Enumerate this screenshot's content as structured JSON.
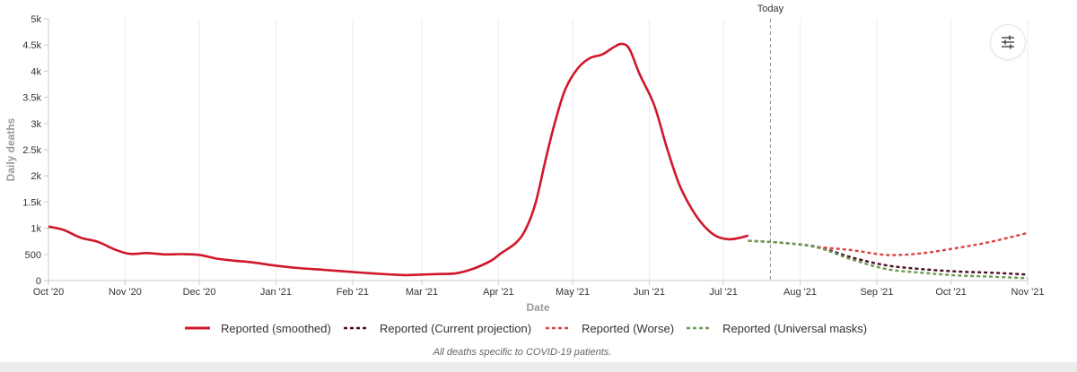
{
  "chart_data": {
    "type": "line",
    "title": "",
    "xlabel": "Date",
    "ylabel": "Daily deaths",
    "y_ticks": [
      {
        "value": 0,
        "label": "0"
      },
      {
        "value": 500,
        "label": "500"
      },
      {
        "value": 1000,
        "label": "1k"
      },
      {
        "value": 1500,
        "label": "1.5k"
      },
      {
        "value": 2000,
        "label": "2k"
      },
      {
        "value": 2500,
        "label": "2.5k"
      },
      {
        "value": 3000,
        "label": "3k"
      },
      {
        "value": 3500,
        "label": "3.5k"
      },
      {
        "value": 4000,
        "label": "4k"
      },
      {
        "value": 4500,
        "label": "4.5k"
      },
      {
        "value": 5000,
        "label": "5k"
      }
    ],
    "x_ticks": [
      {
        "value": "2020-10-01",
        "label": "Oct '20"
      },
      {
        "value": "2020-11-01",
        "label": "Nov '20"
      },
      {
        "value": "2020-12-01",
        "label": "Dec '20"
      },
      {
        "value": "2021-01-01",
        "label": "Jan '21"
      },
      {
        "value": "2021-02-01",
        "label": "Feb '21"
      },
      {
        "value": "2021-03-01",
        "label": "Mar '21"
      },
      {
        "value": "2021-04-01",
        "label": "Apr '21"
      },
      {
        "value": "2021-05-01",
        "label": "May '21"
      },
      {
        "value": "2021-06-01",
        "label": "Jun '21"
      },
      {
        "value": "2021-07-01",
        "label": "Jul '21"
      },
      {
        "value": "2021-08-01",
        "label": "Aug '21"
      },
      {
        "value": "2021-09-01",
        "label": "Sep '21"
      },
      {
        "value": "2021-10-01",
        "label": "Oct '21"
      },
      {
        "value": "2021-11-01",
        "label": "Nov '21"
      }
    ],
    "xlim": [
      "2020-10-01",
      "2021-11-01"
    ],
    "ylim": [
      0,
      5000
    ],
    "grid": "vertical",
    "today": {
      "date": "2021-07-20",
      "label": "Today"
    },
    "legend_position": "bottom",
    "series": [
      {
        "name": "Reported (smoothed)",
        "color": "#d0172b",
        "style": "solid",
        "points": [
          [
            "2020-10-01",
            1030
          ],
          [
            "2020-10-07",
            970
          ],
          [
            "2020-10-14",
            820
          ],
          [
            "2020-10-21",
            740
          ],
          [
            "2020-10-28",
            590
          ],
          [
            "2020-11-03",
            510
          ],
          [
            "2020-11-10",
            525
          ],
          [
            "2020-11-17",
            500
          ],
          [
            "2020-11-24",
            505
          ],
          [
            "2020-12-01",
            490
          ],
          [
            "2020-12-08",
            420
          ],
          [
            "2020-12-15",
            380
          ],
          [
            "2020-12-22",
            350
          ],
          [
            "2021-01-01",
            285
          ],
          [
            "2021-01-10",
            240
          ],
          [
            "2021-01-20",
            205
          ],
          [
            "2021-02-01",
            165
          ],
          [
            "2021-02-08",
            140
          ],
          [
            "2021-02-15",
            120
          ],
          [
            "2021-02-22",
            105
          ],
          [
            "2021-03-01",
            115
          ],
          [
            "2021-03-08",
            125
          ],
          [
            "2021-03-15",
            140
          ],
          [
            "2021-03-22",
            230
          ],
          [
            "2021-03-29",
            380
          ],
          [
            "2021-04-02",
            520
          ],
          [
            "2021-04-08",
            720
          ],
          [
            "2021-04-12",
            980
          ],
          [
            "2021-04-16",
            1480
          ],
          [
            "2021-04-20",
            2300
          ],
          [
            "2021-04-24",
            3050
          ],
          [
            "2021-04-28",
            3650
          ],
          [
            "2021-05-03",
            4050
          ],
          [
            "2021-05-08",
            4250
          ],
          [
            "2021-05-13",
            4320
          ],
          [
            "2021-05-18",
            4470
          ],
          [
            "2021-05-21",
            4520
          ],
          [
            "2021-05-24",
            4420
          ],
          [
            "2021-05-28",
            3950
          ],
          [
            "2021-06-03",
            3350
          ],
          [
            "2021-06-08",
            2550
          ],
          [
            "2021-06-13",
            1850
          ],
          [
            "2021-06-18",
            1380
          ],
          [
            "2021-06-23",
            1050
          ],
          [
            "2021-06-28",
            850
          ],
          [
            "2021-07-03",
            790
          ],
          [
            "2021-07-07",
            810
          ],
          [
            "2021-07-11",
            860
          ]
        ]
      },
      {
        "name": "Reported (Current projection)",
        "color": "#4a0e24",
        "style": "dashed",
        "points": [
          [
            "2021-07-11",
            760
          ],
          [
            "2021-07-25",
            720
          ],
          [
            "2021-08-08",
            640
          ],
          [
            "2021-08-22",
            440
          ],
          [
            "2021-09-05",
            290
          ],
          [
            "2021-09-19",
            220
          ],
          [
            "2021-10-03",
            175
          ],
          [
            "2021-10-17",
            150
          ],
          [
            "2021-11-01",
            115
          ]
        ]
      },
      {
        "name": "Reported (Worse)",
        "color": "#d64545",
        "style": "dashed",
        "points": [
          [
            "2021-08-08",
            640
          ],
          [
            "2021-08-22",
            580
          ],
          [
            "2021-09-05",
            490
          ],
          [
            "2021-09-19",
            520
          ],
          [
            "2021-10-03",
            620
          ],
          [
            "2021-10-17",
            740
          ],
          [
            "2021-11-01",
            910
          ]
        ]
      },
      {
        "name": "Reported (Universal masks)",
        "color": "#6e9a50",
        "style": "dashed",
        "points": [
          [
            "2021-07-11",
            760
          ],
          [
            "2021-07-25",
            720
          ],
          [
            "2021-08-08",
            630
          ],
          [
            "2021-08-22",
            400
          ],
          [
            "2021-09-05",
            220
          ],
          [
            "2021-09-19",
            150
          ],
          [
            "2021-10-03",
            100
          ],
          [
            "2021-10-17",
            75
          ],
          [
            "2021-11-01",
            45
          ]
        ]
      }
    ],
    "footnote": "All deaths specific to COVID-19 patients."
  },
  "settings_button": {
    "icon": "sliders-icon"
  }
}
